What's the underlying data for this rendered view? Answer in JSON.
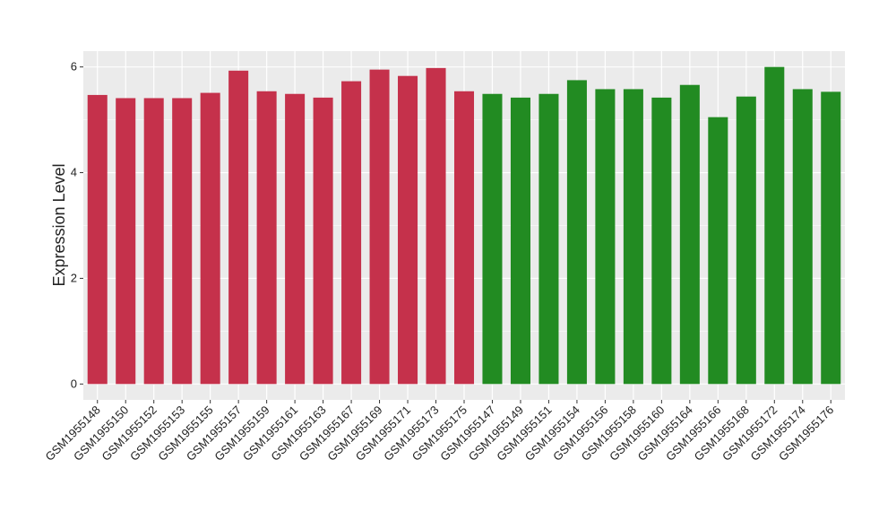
{
  "chart_data": {
    "type": "bar",
    "y_label": "Expression Level",
    "categories": [
      "GSM1955148",
      "GSM1955150",
      "GSM1955152",
      "GSM1955153",
      "GSM1955155",
      "GSM1955157",
      "GSM1955159",
      "GSM1955161",
      "GSM1955163",
      "GSM1955167",
      "GSM1955169",
      "GSM1955171",
      "GSM1955173",
      "GSM1955175",
      "GSM1955147",
      "GSM1955149",
      "GSM1955151",
      "GSM1955154",
      "GSM1955156",
      "GSM1955158",
      "GSM1955160",
      "GSM1955164",
      "GSM1955166",
      "GSM1955168",
      "GSM1955172",
      "GSM1955174",
      "GSM1955176"
    ],
    "values": [
      5.47,
      5.41,
      5.41,
      5.41,
      5.51,
      5.93,
      5.54,
      5.49,
      5.42,
      5.73,
      5.95,
      5.83,
      5.98,
      5.54,
      5.49,
      5.42,
      5.49,
      5.75,
      5.58,
      5.58,
      5.42,
      5.66,
      5.05,
      5.44,
      6.0,
      5.58,
      5.53
    ],
    "colors": [
      "#c5314b",
      "#c5314b",
      "#c5314b",
      "#c5314b",
      "#c5314b",
      "#c5314b",
      "#c5314b",
      "#c5314b",
      "#c5314b",
      "#c5314b",
      "#c5314b",
      "#c5314b",
      "#c5314b",
      "#c5314b",
      "#228b22",
      "#228b22",
      "#228b22",
      "#228b22",
      "#228b22",
      "#228b22",
      "#228b22",
      "#228b22",
      "#228b22",
      "#228b22",
      "#228b22",
      "#228b22",
      "#228b22"
    ],
    "ylim": [
      -0.3,
      6.3
    ],
    "yticks": [
      0,
      2,
      4,
      6
    ],
    "grid": true
  }
}
